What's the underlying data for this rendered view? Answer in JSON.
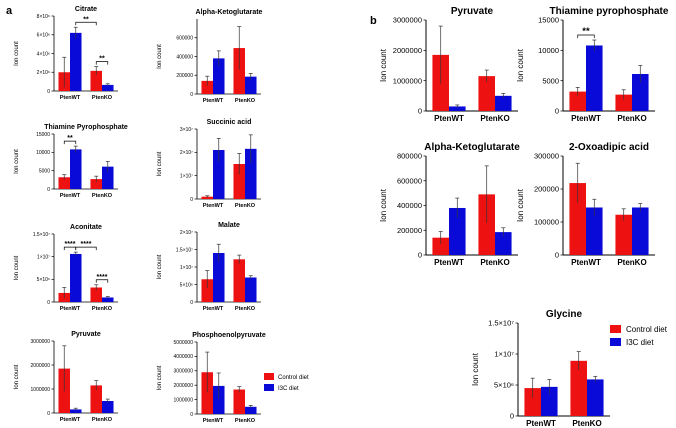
{
  "panels": [
    {
      "text": "a"
    },
    {
      "text": "b"
    }
  ],
  "colors": {
    "control": "#ee1111",
    "i3c": "#0a0ad8"
  },
  "legend_a": {
    "entries": [
      "Control diet",
      "I3C diet"
    ]
  },
  "legend_b": {
    "entries": [
      "Control diet",
      "I3C diet"
    ]
  },
  "chart_data": [
    {
      "id": "a-citrate",
      "panel": "a",
      "type": "bar",
      "title": "Citrate",
      "ylabel": "Ion count",
      "categories": [
        "PtenWT",
        "PtenKO"
      ],
      "ylim": [
        0,
        8000000
      ],
      "yticks": [
        0,
        2000000,
        4000000,
        6000000,
        8000000
      ],
      "ytick_labels": [
        "0",
        "2×10⁶",
        "4×10⁶",
        "6×10⁶",
        "8×10⁶"
      ],
      "series": [
        {
          "name": "Control diet",
          "values": [
            2000000,
            2150000
          ],
          "errors": [
            1600000,
            450000
          ]
        },
        {
          "name": "I3C diet",
          "values": [
            6200000,
            650000
          ],
          "errors": [
            600000,
            120000
          ]
        }
      ],
      "significance": [
        {
          "pair": [
            [
              0,
              1
            ],
            [
              1,
              0
            ]
          ],
          "label": "**"
        },
        {
          "pair": [
            [
              1,
              0
            ],
            [
              1,
              1
            ]
          ],
          "label": "**"
        }
      ]
    },
    {
      "id": "a-akg",
      "panel": "a",
      "type": "bar",
      "title": "Alpha-Ketoglutarate",
      "ylabel": "Ion count",
      "categories": [
        "PtenWT",
        "PtenKO"
      ],
      "ylim": [
        0,
        800000
      ],
      "yticks": [
        0,
        200000,
        400000,
        600000
      ],
      "ytick_labels": [
        "0",
        "200000",
        "400000",
        "600000"
      ],
      "series": [
        {
          "name": "Control diet",
          "values": [
            140000,
            490000
          ],
          "errors": [
            50000,
            230000
          ]
        },
        {
          "name": "I3C diet",
          "values": [
            380000,
            185000
          ],
          "errors": [
            80000,
            35000
          ]
        }
      ],
      "significance": []
    },
    {
      "id": "a-tpp",
      "panel": "a",
      "type": "bar",
      "title": "Thiamine Pyrophosphate",
      "ylabel": "Ion count",
      "categories": [
        "PtenWT",
        "PtenKO"
      ],
      "ylim": [
        0,
        15000
      ],
      "yticks": [
        0,
        5000,
        10000,
        15000
      ],
      "ytick_labels": [
        "0",
        "5000",
        "10000",
        "15000"
      ],
      "series": [
        {
          "name": "Control diet",
          "values": [
            3200,
            2700
          ],
          "errors": [
            700,
            800
          ]
        },
        {
          "name": "I3C diet",
          "values": [
            10800,
            6100
          ],
          "errors": [
            900,
            1400
          ]
        }
      ],
      "significance": [
        {
          "pair": [
            [
              0,
              0
            ],
            [
              0,
              1
            ]
          ],
          "label": "**"
        }
      ]
    },
    {
      "id": "a-succinic",
      "panel": "a",
      "type": "bar",
      "title": "Succinic acid",
      "ylabel": "Ion count",
      "categories": [
        "PtenWT",
        "PtenKO"
      ],
      "ylim": [
        0,
        30000000
      ],
      "yticks": [
        0,
        10000000,
        20000000,
        30000000
      ],
      "ytick_labels": [
        "0",
        "1×10⁷",
        "2×10⁷",
        "3×10⁷"
      ],
      "series": [
        {
          "name": "Control diet",
          "values": [
            1000000,
            15000000
          ],
          "errors": [
            400000,
            4500000
          ]
        },
        {
          "name": "I3C diet",
          "values": [
            21000000,
            21500000
          ],
          "errors": [
            5000000,
            6000000
          ]
        }
      ],
      "significance": []
    },
    {
      "id": "a-aconitate",
      "panel": "a",
      "type": "bar",
      "title": "Aconitate",
      "ylabel": "Ion count",
      "categories": [
        "PtenWT",
        "PtenKO"
      ],
      "ylim": [
        0,
        15000000
      ],
      "yticks": [
        0,
        5000000,
        10000000,
        15000000
      ],
      "ytick_labels": [
        "0",
        "5×10⁶",
        "1×10⁷",
        "1.5×10⁷"
      ],
      "series": [
        {
          "name": "Control diet",
          "values": [
            2000000,
            3200000
          ],
          "errors": [
            1200000,
            600000
          ]
        },
        {
          "name": "I3C diet",
          "values": [
            10600000,
            1000000
          ],
          "errors": [
            400000,
            200000
          ]
        }
      ],
      "significance": [
        {
          "pair": [
            [
              0,
              0
            ],
            [
              0,
              1
            ]
          ],
          "label": "****"
        },
        {
          "pair": [
            [
              0,
              1
            ],
            [
              1,
              0
            ]
          ],
          "label": "****"
        },
        {
          "pair": [
            [
              1,
              0
            ],
            [
              1,
              1
            ]
          ],
          "label": "****"
        }
      ]
    },
    {
      "id": "a-malate",
      "panel": "a",
      "type": "bar",
      "title": "Malate",
      "ylabel": "Ion count",
      "categories": [
        "PtenWT",
        "PtenKO"
      ],
      "ylim": [
        0,
        20000000
      ],
      "yticks": [
        0,
        5000000,
        10000000,
        15000000,
        20000000
      ],
      "ytick_labels": [
        "0",
        "5×10⁶",
        "1×10⁷",
        "1.5×10⁷",
        "2×10⁷"
      ],
      "series": [
        {
          "name": "Control diet",
          "values": [
            6500000,
            12200000
          ],
          "errors": [
            2500000,
            1200000
          ]
        },
        {
          "name": "I3C diet",
          "values": [
            14000000,
            7000000
          ],
          "errors": [
            2500000,
            500000
          ]
        }
      ],
      "significance": []
    },
    {
      "id": "a-pyruvate",
      "panel": "a",
      "type": "bar",
      "title": "Pyruvate",
      "ylabel": "Ion count",
      "categories": [
        "PtenWT",
        "PtenKO"
      ],
      "ylim": [
        0,
        3000000
      ],
      "yticks": [
        0,
        1000000,
        2000000,
        3000000
      ],
      "ytick_labels": [
        "0",
        "1000000",
        "2000000",
        "3000000"
      ],
      "series": [
        {
          "name": "Control diet",
          "values": [
            1850000,
            1150000
          ],
          "errors": [
            950000,
            200000
          ]
        },
        {
          "name": "I3C diet",
          "values": [
            150000,
            500000
          ],
          "errors": [
            50000,
            80000
          ]
        }
      ],
      "significance": []
    },
    {
      "id": "a-pep",
      "panel": "a",
      "type": "bar",
      "title": "Phosphoenolpyruvate",
      "ylabel": "Ion count",
      "categories": [
        "PtenWT",
        "PtenKO"
      ],
      "ylim": [
        0,
        5000000
      ],
      "yticks": [
        0,
        1000000,
        2000000,
        3000000,
        4000000,
        5000000
      ],
      "ytick_labels": [
        "0",
        "1000000",
        "2000000",
        "3000000",
        "4000000",
        "5000000"
      ],
      "series": [
        {
          "name": "Control diet",
          "values": [
            2900000,
            1700000
          ],
          "errors": [
            1400000,
            200000
          ]
        },
        {
          "name": "I3C diet",
          "values": [
            1950000,
            500000
          ],
          "errors": [
            900000,
            100000
          ]
        }
      ],
      "significance": []
    },
    {
      "id": "b-pyruvate",
      "panel": "b",
      "type": "bar",
      "title": "Pyruvate",
      "ylabel": "Ion count",
      "categories": [
        "PtenWT",
        "PtenKO"
      ],
      "ylim": [
        0,
        3000000
      ],
      "yticks": [
        0,
        1000000,
        2000000,
        3000000
      ],
      "ytick_labels": [
        "0",
        "1000000",
        "2000000",
        "3000000"
      ],
      "series": [
        {
          "name": "Control diet",
          "values": [
            1850000,
            1150000
          ],
          "errors": [
            950000,
            200000
          ]
        },
        {
          "name": "I3C diet",
          "values": [
            150000,
            500000
          ],
          "errors": [
            50000,
            80000
          ]
        }
      ],
      "significance": []
    },
    {
      "id": "b-tpp",
      "panel": "b",
      "type": "bar",
      "title": "Thiamine pyrophosphate",
      "ylabel": "Ion count",
      "categories": [
        "PtenWT",
        "PtenKO"
      ],
      "ylim": [
        0,
        15000
      ],
      "yticks": [
        0,
        5000,
        10000,
        15000
      ],
      "ytick_labels": [
        "0",
        "5000",
        "10000",
        "15000"
      ],
      "series": [
        {
          "name": "Control diet",
          "values": [
            3200,
            2700
          ],
          "errors": [
            700,
            800
          ]
        },
        {
          "name": "I3C diet",
          "values": [
            10800,
            6100
          ],
          "errors": [
            900,
            1400
          ]
        }
      ],
      "significance": [
        {
          "pair": [
            [
              0,
              0
            ],
            [
              0,
              1
            ]
          ],
          "label": "**"
        }
      ]
    },
    {
      "id": "b-akg",
      "panel": "b",
      "type": "bar",
      "title": "Alpha-Ketoglutarate",
      "ylabel": "Ion count",
      "categories": [
        "PtenWT",
        "PtenKO"
      ],
      "ylim": [
        0,
        800000
      ],
      "yticks": [
        0,
        200000,
        400000,
        600000,
        800000
      ],
      "ytick_labels": [
        "0",
        "200000",
        "400000",
        "600000",
        "800000"
      ],
      "series": [
        {
          "name": "Control diet",
          "values": [
            140000,
            490000
          ],
          "errors": [
            50000,
            230000
          ]
        },
        {
          "name": "I3C diet",
          "values": [
            380000,
            185000
          ],
          "errors": [
            80000,
            35000
          ]
        }
      ],
      "significance": []
    },
    {
      "id": "b-oxo",
      "panel": "b",
      "type": "bar",
      "title": "2-Oxoadipic acid",
      "ylabel": "Ion count",
      "categories": [
        "PtenWT",
        "PtenKO"
      ],
      "ylim": [
        0,
        300000
      ],
      "yticks": [
        0,
        100000,
        200000,
        300000
      ],
      "ytick_labels": [
        "0",
        "100000",
        "200000",
        "300000"
      ],
      "series": [
        {
          "name": "Control diet",
          "values": [
            218000,
            122000
          ],
          "errors": [
            60000,
            18000
          ]
        },
        {
          "name": "I3C diet",
          "values": [
            144000,
            144000
          ],
          "errors": [
            25000,
            12000
          ]
        }
      ],
      "significance": []
    },
    {
      "id": "b-glycine",
      "panel": "b",
      "type": "bar",
      "title": "Glycine",
      "ylabel": "Ion count",
      "categories": [
        "PtenWT",
        "PtenKO"
      ],
      "ylim": [
        0,
        15000000
      ],
      "yticks": [
        0,
        5000000,
        10000000,
        15000000
      ],
      "ytick_labels": [
        "0",
        "5×10⁶",
        "1×10⁷",
        "1.5×10⁷"
      ],
      "series": [
        {
          "name": "Control diet",
          "values": [
            4500000,
            8900000
          ],
          "errors": [
            1600000,
            1500000
          ]
        },
        {
          "name": "I3C diet",
          "values": [
            4700000,
            5900000
          ],
          "errors": [
            1200000,
            500000
          ]
        }
      ],
      "significance": []
    }
  ]
}
